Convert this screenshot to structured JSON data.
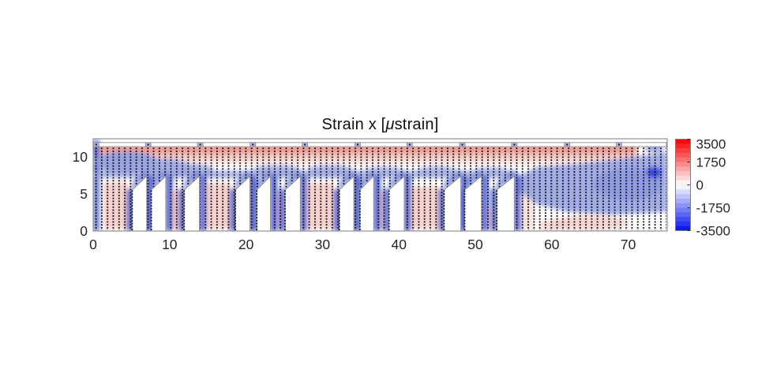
{
  "title": {
    "pre": "Strain x [",
    "mu": "μ",
    "post": "strain]",
    "full": "Strain x [μstrain]"
  },
  "chart_data": {
    "type": "heatmap",
    "title": "Strain x [μstrain]",
    "units": "μstrain",
    "xlabel": "",
    "ylabel": "",
    "x_ticks": [
      0,
      10,
      20,
      30,
      40,
      50,
      60,
      70
    ],
    "y_ticks": [
      0,
      5,
      10
    ],
    "x_range": [
      0,
      75.1
    ],
    "y_range": [
      0,
      12.45
    ],
    "grid": "off",
    "colormap": "blue-white-red",
    "colorbar": {
      "ticks": [
        3500,
        1750,
        0,
        -1750,
        -3500
      ],
      "min": -3500,
      "max": 3500,
      "segments": 20,
      "top_color": "#f80a0a",
      "mid_color": "#ffffff",
      "bottom_color": "#0c1cf0"
    },
    "measurement_grid": {
      "dx": 0.754,
      "dy": 0.397,
      "dot_color": "#181818",
      "dot_size_px": 1.9
    },
    "specimen": {
      "description": "ribbed panel cross-section with trapezoidal cutouts",
      "cutout_left_top_y": 5.55,
      "cutout_right_top_y": 7.4,
      "cutouts": [
        {
          "x1": 5.1,
          "x2": 7.0
        },
        {
          "x1": 7.6,
          "x2": 9.5
        },
        {
          "x1": 11.9,
          "x2": 13.9
        },
        {
          "x1": 18.6,
          "x2": 20.5
        },
        {
          "x1": 21.4,
          "x2": 23.2
        },
        {
          "x1": 25.1,
          "x2": 27.1
        },
        {
          "x1": 32.2,
          "x2": 34.1
        },
        {
          "x1": 34.9,
          "x2": 36.7
        },
        {
          "x1": 38.7,
          "x2": 40.7
        },
        {
          "x1": 45.9,
          "x2": 48.1
        },
        {
          "x1": 48.6,
          "x2": 50.8
        },
        {
          "x1": 52.8,
          "x2": 55.1
        }
      ],
      "top_strip": {
        "y_bottom": 11.45,
        "y_top": 12.0,
        "joint_xs": [
          0.4,
          7.2,
          14.0,
          20.9,
          27.7,
          34.6,
          41.4,
          48.3,
          55.1,
          62.0,
          68.8
        ],
        "joint_width": 0.72,
        "joint_color": "#a9b5ea"
      }
    },
    "field_regions": [
      {
        "name": "top-skin-tension-band",
        "x": [
          0,
          75
        ],
        "y": [
          8.8,
          11.4
        ],
        "approx_strain": 1400
      },
      {
        "name": "left-upper-compression-blob",
        "x": [
          0,
          14
        ],
        "y": [
          7.5,
          10.5
        ],
        "approx_strain": -1300
      },
      {
        "name": "left-edge-strip",
        "x": [
          0,
          0.8
        ],
        "y": [
          0,
          12
        ],
        "approx_strain": -2200
      },
      {
        "name": "web-band-over-cutouts",
        "x": [
          0,
          56
        ],
        "y": [
          7.2,
          8.2
        ],
        "approx_strain": -1100
      },
      {
        "name": "rib-edge-strips",
        "x": [
          5,
          55
        ],
        "y": [
          0,
          7.4
        ],
        "approx_strain": -2600
      },
      {
        "name": "rib-center-tension",
        "x": [
          1,
          46
        ],
        "y": [
          0,
          6.5
        ],
        "approx_strain": 600
      },
      {
        "name": "right-diagonal-compression-band",
        "x": [
          55,
          75
        ],
        "y": [
          2.5,
          10.7
        ],
        "approx_strain": -1500
      },
      {
        "name": "right-dark-spot",
        "x": [
          72.4,
          74.3
        ],
        "y": [
          7.2,
          8.6
        ],
        "approx_strain": -3100
      },
      {
        "name": "bottom-right-tension-patch",
        "x": [
          58,
          70
        ],
        "y": [
          0,
          2.2
        ],
        "approx_strain": 500
      }
    ],
    "render_blobs": [
      {
        "s": "g",
        "x": 0,
        "y": 8.6,
        "w": 75.1,
        "h": 2.9,
        "c": "#eb9087"
      },
      {
        "s": "r",
        "x": 0,
        "y": 10.8,
        "w": 75.1,
        "h": 0.65,
        "c": "#ea8c82",
        "o": 0.8
      },
      {
        "s": "r",
        "x": 71.2,
        "y": 9.2,
        "w": 3.9,
        "h": 2.3,
        "c": "#ffffff",
        "o": 0.95
      },
      {
        "s": "e",
        "cx": 73.4,
        "cy": 11.15,
        "rx": 1.3,
        "ry": 0.5,
        "c": "#8e9ae0",
        "o": 0.9
      },
      {
        "s": "r",
        "x": 0,
        "y": 0,
        "w": 0.85,
        "h": 12.3,
        "c": "#6b7cd8",
        "o": 0.95
      },
      {
        "s": "r",
        "x": 0,
        "y": 7.4,
        "w": 0.6,
        "h": 4.2,
        "c": "#4456ce",
        "o": 0.9
      },
      {
        "s": "e",
        "cx": 4.3,
        "cy": 9.3,
        "rx": 4.2,
        "ry": 1.45,
        "c": "#93a0e1",
        "o": 0.95
      },
      {
        "s": "e",
        "cx": 9.2,
        "cy": 8.6,
        "rx": 3.6,
        "ry": 1.15,
        "c": "#9aa6e4",
        "o": 0.9
      },
      {
        "s": "e",
        "cx": 13.2,
        "cy": 8.1,
        "rx": 2.6,
        "ry": 0.95,
        "c": "#a3aee7",
        "o": 0.9
      },
      {
        "s": "r",
        "x": 0,
        "y": 7.15,
        "w": 55.6,
        "h": 1.0,
        "c": "#97a3e2",
        "o": 0.8
      },
      {
        "s": "e",
        "cx": 24,
        "cy": 8.15,
        "rx": 3.2,
        "ry": 0.75,
        "c": "#9aa6e4",
        "o": 0.8
      },
      {
        "s": "e",
        "cx": 31,
        "cy": 8.2,
        "rx": 3.0,
        "ry": 0.7,
        "c": "#9aa6e4",
        "o": 0.8
      },
      {
        "s": "e",
        "cx": 38,
        "cy": 8.05,
        "rx": 2.6,
        "ry": 0.65,
        "c": "#a3aee7",
        "o": 0.8
      },
      {
        "s": "e",
        "cx": 45,
        "cy": 8.1,
        "rx": 2.6,
        "ry": 0.65,
        "c": "#a3aee7",
        "o": 0.8
      },
      {
        "s": "e",
        "cx": 52,
        "cy": 8.0,
        "rx": 2.4,
        "ry": 0.6,
        "c": "#a3aee7",
        "o": 0.8
      },
      {
        "s": "r",
        "x": 7.0,
        "y": 0,
        "w": 0.6,
        "h": 7.3,
        "c": "#4356d0",
        "o": 0.95
      },
      {
        "s": "r",
        "x": 20.5,
        "y": 0,
        "w": 0.9,
        "h": 7.3,
        "c": "#5365d5",
        "o": 0.9
      },
      {
        "s": "r",
        "x": 34.1,
        "y": 0,
        "w": 0.8,
        "h": 7.3,
        "c": "#4356d0",
        "o": 0.95
      },
      {
        "s": "r",
        "x": 48.1,
        "y": 0,
        "w": 0.5,
        "h": 7.3,
        "c": "#4356d0",
        "o": 0.95
      },
      {
        "s": "r",
        "x": 1.3,
        "y": 0.3,
        "w": 3.3,
        "h": 6.3,
        "c": "#f4c9c4",
        "o": 0.85
      },
      {
        "s": "r",
        "x": 9.9,
        "y": 0.3,
        "w": 1.7,
        "h": 5.2,
        "c": "#f4c9c4",
        "o": 0.85
      },
      {
        "s": "r",
        "x": 14.7,
        "y": 0.3,
        "w": 3.4,
        "h": 6.2,
        "c": "#f4c9c4",
        "o": 0.85
      },
      {
        "s": "r",
        "x": 23.8,
        "y": 0.3,
        "w": 1.0,
        "h": 4.7,
        "c": "#f4c9c4",
        "o": 0.8
      },
      {
        "s": "r",
        "x": 27.9,
        "y": 0.3,
        "w": 3.6,
        "h": 6.2,
        "c": "#f4c9c4",
        "o": 0.85
      },
      {
        "s": "r",
        "x": 37.3,
        "y": 0.3,
        "w": 1.1,
        "h": 4.7,
        "c": "#f4c9c4",
        "o": 0.8
      },
      {
        "s": "r",
        "x": 41.4,
        "y": 0.3,
        "w": 3.8,
        "h": 5.7,
        "c": "#f4c9c4",
        "o": 0.85
      },
      {
        "s": "r",
        "x": 51.2,
        "y": 0.3,
        "w": 1.3,
        "h": 2.7,
        "c": "#f6d4d0",
        "o": 0.8
      },
      {
        "s": "r",
        "x": 55.9,
        "y": 0.2,
        "w": 1.8,
        "h": 6.8,
        "c": "#f8dcd8",
        "o": 0.8
      },
      {
        "s": "p",
        "pts": [
          [
            55.4,
            7.3
          ],
          [
            58,
            8.6
          ],
          [
            63,
            9.0
          ],
          [
            68,
            9.6
          ],
          [
            75.1,
            10.7
          ],
          [
            75.1,
            2.6
          ],
          [
            68,
            2.2
          ],
          [
            62,
            2.6
          ],
          [
            58,
            3.6
          ],
          [
            55.9,
            5.2
          ]
        ],
        "c": "#9aa6e5",
        "o": 0.92
      },
      {
        "s": "e",
        "cx": 70,
        "cy": 6.3,
        "rx": 4.5,
        "ry": 2.2,
        "c": "#8c99e0",
        "o": 0.85
      },
      {
        "s": "e",
        "cx": 73.4,
        "cy": 7.9,
        "rx": 1.0,
        "ry": 0.75,
        "c": "#2c40e4",
        "o": 0.95
      },
      {
        "s": "e",
        "cx": 65,
        "cy": 1.1,
        "rx": 5.0,
        "ry": 1.0,
        "c": "#f5cec9",
        "o": 0.85
      },
      {
        "s": "e",
        "cx": 60.3,
        "cy": 0.8,
        "rx": 2.0,
        "ry": 0.8,
        "c": "#f5cec9",
        "o": 0.8
      }
    ],
    "render_style": {
      "rib_edge_color": "#5565d4",
      "diag_shadow_color": "#7384da",
      "cutout_fill": "#ffffff",
      "cutout_stroke": "#8f8f8f",
      "box_color": "#7e7e7e",
      "label_color": "#262626",
      "strip_stroke": "#909090"
    }
  }
}
